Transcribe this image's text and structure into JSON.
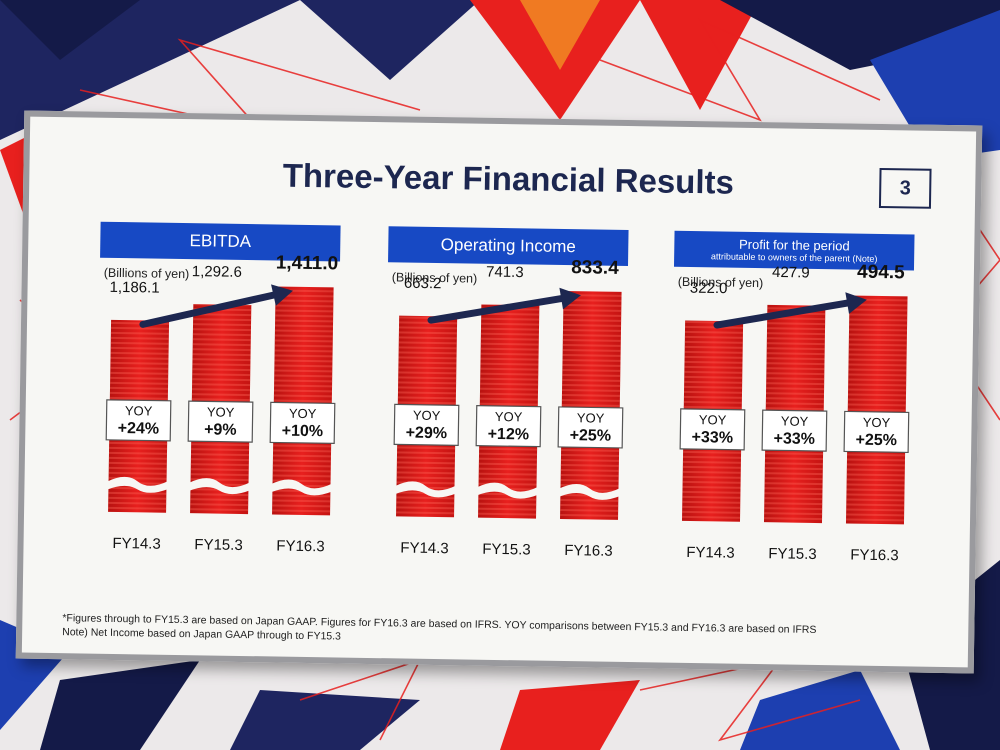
{
  "slide": {
    "title": "Three-Year Financial Results",
    "page_number": "3",
    "footnotes": [
      "*Figures through to FY15.3 are based on Japan GAAP. Figures for FY16.3 are based on IFRS. YOY comparisons between FY15.3 and FY16.3 are based on IFRS",
      "Note) Net Income based on Japan GAAP through to FY15.3"
    ]
  },
  "colors": {
    "bar": "#e8201e",
    "bar_highlight": "#ff6a5a",
    "arrow": "#1d2750",
    "header": "#1749c4",
    "title": "#1d2750"
  },
  "chart_data": [
    {
      "type": "bar",
      "title": "EBITDA",
      "subtitle": "",
      "unit": "(Billions of yen)",
      "categories": [
        "FY14.3",
        "FY15.3",
        "FY16.3"
      ],
      "values": [
        1186.1,
        1292.6,
        1411.0
      ],
      "value_labels": [
        "1,186.1",
        "1,292.6",
        "1,411.0"
      ],
      "yoy_label": "YOY",
      "yoy": [
        "+24%",
        "+9%",
        "+10%"
      ],
      "axis_break": true
    },
    {
      "type": "bar",
      "title": "Operating Income",
      "subtitle": "",
      "unit": "(Billions of yen)",
      "categories": [
        "FY14.3",
        "FY15.3",
        "FY16.3"
      ],
      "values": [
        663.2,
        741.3,
        833.4
      ],
      "value_labels": [
        "663.2",
        "741.3",
        "833.4"
      ],
      "yoy_label": "YOY",
      "yoy": [
        "+29%",
        "+12%",
        "+25%"
      ],
      "axis_break": true
    },
    {
      "type": "bar",
      "title": "Profit for the period",
      "subtitle": "attributable to owners of the parent (Note)",
      "unit": "(Billions of yen)",
      "categories": [
        "FY14.3",
        "FY15.3",
        "FY16.3"
      ],
      "values": [
        322.0,
        427.9,
        494.5
      ],
      "value_labels": [
        "322.0",
        "427.9",
        "494.5"
      ],
      "yoy_label": "YOY",
      "yoy": [
        "+33%",
        "+33%",
        "+25%"
      ],
      "axis_break": false
    }
  ]
}
